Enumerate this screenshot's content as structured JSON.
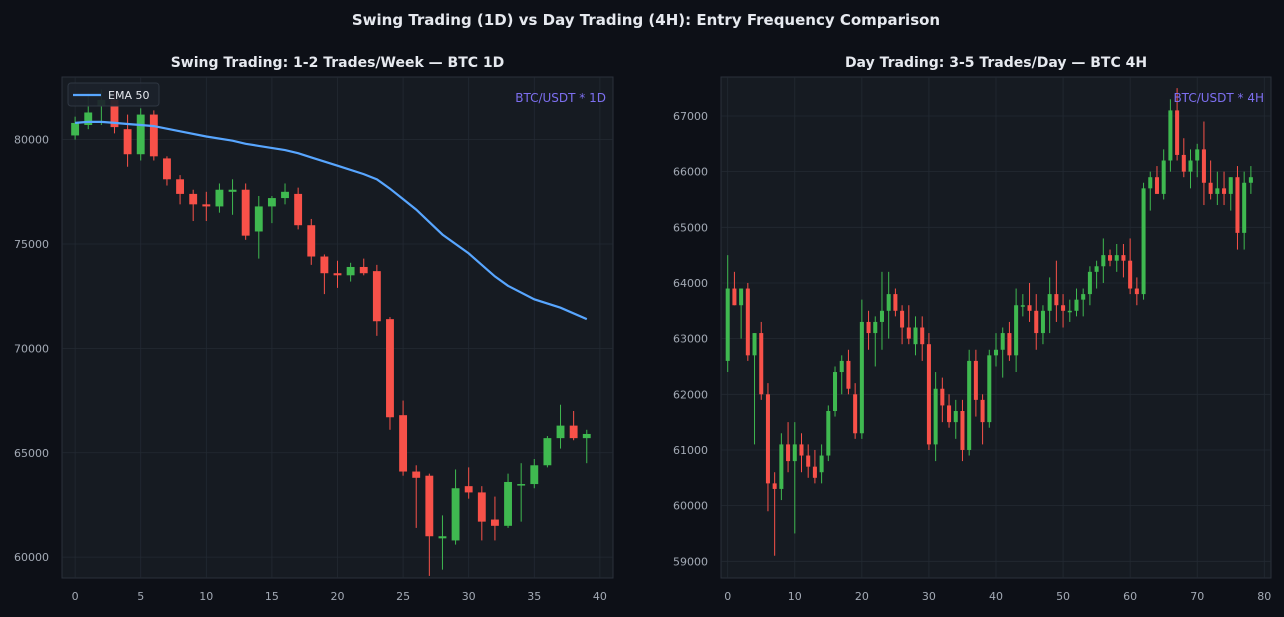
{
  "title": "Swing Trading (1D) vs Day Trading (4H): Entry Frequency Comparison",
  "colors": {
    "background": "#0d1017",
    "panel": "#161b22",
    "grid": "#232a33",
    "up": "#3fb950",
    "down": "#f85149",
    "ema": "#58a6ff",
    "watermark": "#7d6ff0"
  },
  "chart_data": [
    {
      "type": "candlestick",
      "title": "Swing Trading: 1-2 Trades/Week — BTC 1D",
      "watermark": "BTC/USDT * 1D",
      "xlim": [
        -1,
        41
      ],
      "ylim": [
        59000,
        83000
      ],
      "xticks": [
        0,
        5,
        10,
        15,
        20,
        25,
        30,
        35,
        40
      ],
      "yticks": [
        60000,
        65000,
        70000,
        75000,
        80000
      ],
      "legend": {
        "position": "top-left",
        "entries": [
          "EMA 50"
        ]
      },
      "ohlc": [
        [
          0,
          80200,
          81100,
          80000,
          80800
        ],
        [
          1,
          80700,
          82200,
          80500,
          81300
        ],
        [
          2,
          81600,
          82400,
          80700,
          81900
        ],
        [
          3,
          81900,
          82300,
          80300,
          80600
        ],
        [
          4,
          80500,
          81200,
          78700,
          79300
        ],
        [
          5,
          79300,
          81500,
          79000,
          81200
        ],
        [
          6,
          81200,
          81400,
          79000,
          79200
        ],
        [
          7,
          79100,
          79200,
          77800,
          78100
        ],
        [
          8,
          78100,
          78300,
          76900,
          77400
        ],
        [
          9,
          77400,
          77600,
          76100,
          76900
        ],
        [
          10,
          76900,
          77500,
          76100,
          76800
        ],
        [
          11,
          76800,
          77900,
          76500,
          77600
        ],
        [
          12,
          77500,
          78100,
          76400,
          77600
        ],
        [
          13,
          77600,
          77900,
          75200,
          75400
        ],
        [
          14,
          75600,
          77300,
          74300,
          76800
        ],
        [
          15,
          76800,
          77300,
          76000,
          77200
        ],
        [
          16,
          77200,
          77900,
          76900,
          77500
        ],
        [
          17,
          77400,
          77700,
          75700,
          75900
        ],
        [
          18,
          75900,
          76200,
          74000,
          74400
        ],
        [
          19,
          74400,
          74500,
          72600,
          73600
        ],
        [
          20,
          73600,
          74200,
          72900,
          73500
        ],
        [
          21,
          73500,
          74100,
          73200,
          73900
        ],
        [
          22,
          73900,
          74300,
          73500,
          73600
        ],
        [
          23,
          73700,
          74000,
          70600,
          71300
        ],
        [
          24,
          71400,
          71500,
          66100,
          66700
        ],
        [
          25,
          66800,
          67500,
          63900,
          64100
        ],
        [
          26,
          64100,
          64400,
          61400,
          63800
        ],
        [
          27,
          63900,
          64000,
          59100,
          61000
        ],
        [
          28,
          60900,
          62000,
          59400,
          61000
        ],
        [
          29,
          60800,
          64200,
          60600,
          63300
        ],
        [
          30,
          63400,
          64300,
          62800,
          63100
        ],
        [
          31,
          63100,
          63400,
          60800,
          61700
        ],
        [
          32,
          61800,
          62900,
          60800,
          61500
        ],
        [
          33,
          61500,
          64000,
          61400,
          63600
        ],
        [
          34,
          63500,
          64500,
          61700,
          63500
        ],
        [
          35,
          63500,
          64700,
          63300,
          64400
        ],
        [
          36,
          64400,
          65800,
          64300,
          65700
        ],
        [
          37,
          65700,
          67300,
          65200,
          66300
        ],
        [
          38,
          66300,
          67000,
          65600,
          65700
        ],
        [
          39,
          65700,
          66100,
          64500,
          65900
        ]
      ],
      "ema": {
        "name": "EMA 50",
        "x": [
          0,
          1,
          2,
          3,
          4,
          5,
          6,
          8,
          10,
          12,
          13,
          14,
          16,
          17,
          18,
          20,
          22,
          23,
          24,
          25,
          26,
          27,
          28,
          30,
          31,
          32,
          33,
          35,
          37,
          39
        ],
        "y": [
          80800,
          80850,
          80850,
          80800,
          80750,
          80700,
          80650,
          80400,
          80150,
          79950,
          79800,
          79700,
          79500,
          79350,
          79150,
          78750,
          78350,
          78100,
          77650,
          77150,
          76650,
          76050,
          75450,
          74550,
          74000,
          73450,
          73000,
          72350,
          71950,
          71400
        ]
      }
    },
    {
      "type": "candlestick",
      "title": "Day Trading: 3-5 Trades/Day — BTC 4H",
      "watermark": "BTC/USDT * 4H",
      "xlim": [
        -1,
        81
      ],
      "ylim": [
        58700,
        67700
      ],
      "xticks": [
        0,
        10,
        20,
        30,
        40,
        50,
        60,
        70,
        80
      ],
      "yticks": [
        59000,
        60000,
        61000,
        62000,
        63000,
        64000,
        65000,
        66000,
        67000
      ],
      "ohlc": [
        [
          0,
          62600,
          64500,
          62400,
          63900
        ],
        [
          1,
          63900,
          64200,
          63600,
          63600
        ],
        [
          2,
          63600,
          63900,
          63000,
          63900
        ],
        [
          3,
          63900,
          64000,
          62600,
          62700
        ],
        [
          4,
          62700,
          63100,
          61100,
          63100
        ],
        [
          5,
          63100,
          63300,
          61900,
          62000
        ],
        [
          6,
          62000,
          62200,
          59900,
          60400
        ],
        [
          7,
          60400,
          60600,
          59100,
          60300
        ],
        [
          8,
          60300,
          61300,
          60100,
          61100
        ],
        [
          9,
          61100,
          61500,
          60600,
          60800
        ],
        [
          10,
          60800,
          61500,
          59500,
          61100
        ],
        [
          11,
          61100,
          61300,
          60600,
          60900
        ],
        [
          12,
          60900,
          61100,
          60500,
          60700
        ],
        [
          13,
          60700,
          61000,
          60400,
          60500
        ],
        [
          14,
          60600,
          61100,
          60400,
          60900
        ],
        [
          15,
          60900,
          61800,
          60800,
          61700
        ],
        [
          16,
          61700,
          62500,
          61600,
          62400
        ],
        [
          17,
          62400,
          62700,
          62000,
          62600
        ],
        [
          18,
          62600,
          62800,
          62000,
          62100
        ],
        [
          19,
          62000,
          62200,
          61200,
          61300
        ],
        [
          20,
          61300,
          63700,
          61200,
          63300
        ],
        [
          21,
          63300,
          63500,
          62800,
          63100
        ],
        [
          22,
          63100,
          63400,
          62500,
          63300
        ],
        [
          23,
          63300,
          64200,
          62800,
          63500
        ],
        [
          24,
          63500,
          64200,
          63000,
          63800
        ],
        [
          25,
          63800,
          63900,
          63400,
          63500
        ],
        [
          26,
          63500,
          63600,
          62900,
          63200
        ],
        [
          27,
          63200,
          63600,
          62900,
          63000
        ],
        [
          28,
          62900,
          63400,
          62700,
          63200
        ],
        [
          29,
          63200,
          63400,
          62600,
          62900
        ],
        [
          30,
          62900,
          63100,
          61000,
          61100
        ],
        [
          31,
          61100,
          62400,
          60800,
          62100
        ],
        [
          32,
          62100,
          62300,
          61500,
          61800
        ],
        [
          33,
          61800,
          62000,
          61400,
          61500
        ],
        [
          34,
          61500,
          61900,
          61200,
          61700
        ],
        [
          35,
          61700,
          61900,
          60800,
          61000
        ],
        [
          36,
          61000,
          62800,
          60900,
          62600
        ],
        [
          37,
          62600,
          62800,
          61600,
          61900
        ],
        [
          38,
          61900,
          62000,
          61100,
          61500
        ],
        [
          39,
          61500,
          62800,
          61400,
          62700
        ],
        [
          40,
          62700,
          63100,
          62500,
          62800
        ],
        [
          41,
          62800,
          63200,
          62300,
          63100
        ],
        [
          42,
          63100,
          63300,
          62600,
          62700
        ],
        [
          43,
          62700,
          63900,
          62400,
          63600
        ],
        [
          44,
          63600,
          63800,
          63400,
          63600
        ],
        [
          45,
          63600,
          64000,
          63300,
          63500
        ],
        [
          46,
          63500,
          63800,
          62800,
          63100
        ],
        [
          47,
          63100,
          63600,
          62900,
          63500
        ],
        [
          48,
          63500,
          64100,
          63100,
          63800
        ],
        [
          49,
          63800,
          64400,
          63300,
          63600
        ],
        [
          50,
          63600,
          63800,
          63200,
          63500
        ],
        [
          51,
          63500,
          63700,
          63300,
          63500
        ],
        [
          52,
          63500,
          63900,
          63400,
          63700
        ],
        [
          53,
          63700,
          63900,
          63400,
          63800
        ],
        [
          54,
          63800,
          64300,
          63600,
          64200
        ],
        [
          55,
          64200,
          64400,
          63900,
          64300
        ],
        [
          56,
          64300,
          64800,
          64000,
          64500
        ],
        [
          57,
          64500,
          64600,
          64300,
          64400
        ],
        [
          58,
          64400,
          64700,
          64200,
          64500
        ],
        [
          59,
          64500,
          64700,
          64100,
          64400
        ],
        [
          60,
          64400,
          64800,
          63800,
          63900
        ],
        [
          61,
          63900,
          64100,
          63600,
          63800
        ],
        [
          62,
          63800,
          65800,
          63700,
          65700
        ],
        [
          63,
          65700,
          66000,
          65300,
          65900
        ],
        [
          64,
          65900,
          66100,
          65600,
          65600
        ],
        [
          65,
          65600,
          66400,
          65500,
          66200
        ],
        [
          66,
          66200,
          67300,
          66000,
          67100
        ],
        [
          67,
          67100,
          67500,
          66200,
          66300
        ],
        [
          68,
          66300,
          66600,
          65900,
          66000
        ],
        [
          69,
          66000,
          66400,
          65700,
          66200
        ],
        [
          70,
          66200,
          66500,
          65900,
          66400
        ],
        [
          71,
          66400,
          66900,
          65400,
          65800
        ],
        [
          72,
          65800,
          66200,
          65500,
          65600
        ],
        [
          73,
          65600,
          66000,
          65400,
          65700
        ],
        [
          74,
          65700,
          66000,
          65400,
          65600
        ],
        [
          75,
          65600,
          65900,
          65300,
          65900
        ],
        [
          76,
          65900,
          66100,
          64600,
          64900
        ],
        [
          77,
          64900,
          66000,
          64600,
          65800
        ],
        [
          78,
          65800,
          66100,
          65600,
          65900
        ]
      ]
    }
  ]
}
